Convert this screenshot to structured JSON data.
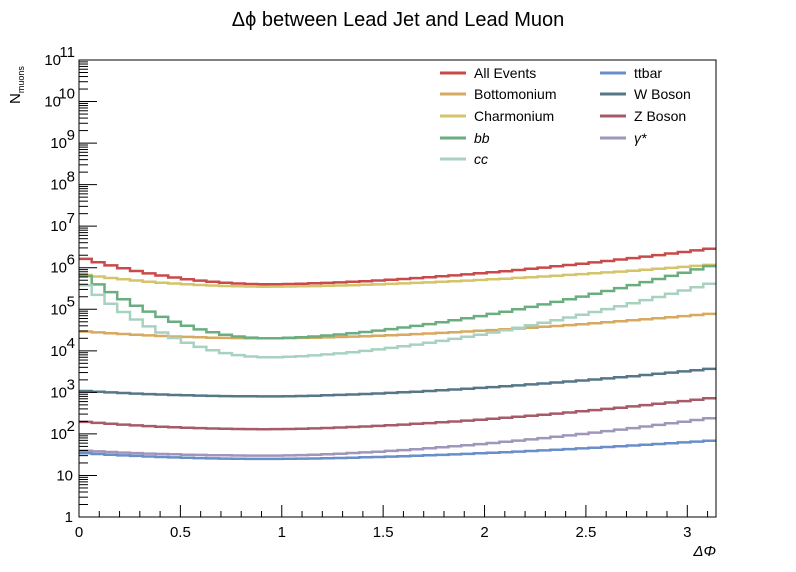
{
  "chart_data": {
    "type": "line",
    "title": "Δϕ between Lead Jet and Lead Muon",
    "xlabel": "ΔΦ",
    "ylabel": "N",
    "ylabel_sub": "muons",
    "xlim": [
      0,
      3.1416
    ],
    "ylim": [
      1,
      100000000000
    ],
    "yscale": "log",
    "grid": false,
    "legend_position": "top-right",
    "x_ticks": [
      {
        "v": 0,
        "label": "0"
      },
      {
        "v": 0.5,
        "label": "0.5"
      },
      {
        "v": 1,
        "label": "1"
      },
      {
        "v": 1.5,
        "label": "1.5"
      },
      {
        "v": 2,
        "label": "2"
      },
      {
        "v": 2.5,
        "label": "2.5"
      },
      {
        "v": 3,
        "label": "3"
      }
    ],
    "y_ticks": [
      {
        "e": 0,
        "base": "1",
        "exp": ""
      },
      {
        "e": 1,
        "base": "10",
        "exp": ""
      },
      {
        "e": 2,
        "base": "10",
        "exp": "2"
      },
      {
        "e": 3,
        "base": "10",
        "exp": "3"
      },
      {
        "e": 4,
        "base": "10",
        "exp": "4"
      },
      {
        "e": 5,
        "base": "10",
        "exp": "5"
      },
      {
        "e": 6,
        "base": "10",
        "exp": "6"
      },
      {
        "e": 7,
        "base": "10",
        "exp": "7"
      },
      {
        "e": 8,
        "base": "10",
        "exp": "8"
      },
      {
        "e": 9,
        "base": "10",
        "exp": "9"
      },
      {
        "e": 10,
        "base": "10",
        "exp": "10"
      },
      {
        "e": 11,
        "base": "10",
        "exp": "11"
      }
    ],
    "series": [
      {
        "name": "All Events",
        "color": "#c94a4a",
        "curve": {
          "type": "u",
          "left": 1800000,
          "min": 400000,
          "right": 3000000
        }
      },
      {
        "name": "Bottomonium",
        "color": "#d6aa60",
        "curve": {
          "type": "u",
          "left": 30000,
          "min": 20000,
          "right": 80000
        }
      },
      {
        "name": "Charmonium",
        "color": "#d4c46a",
        "curve": {
          "type": "u",
          "left": 700000,
          "min": 350000,
          "right": 1200000
        }
      },
      {
        "name": "bb",
        "color": "#6aae80",
        "curve": {
          "type": "u",
          "left": 800000,
          "min": 20000,
          "right": 1200000
        }
      },
      {
        "name": "cc",
        "color": "#a8d2c0",
        "curve": {
          "type": "u",
          "left": 500000,
          "min": 7000,
          "right": 450000
        }
      },
      {
        "name": "ttbar",
        "color": "#6a8ec8",
        "curve": {
          "type": "u",
          "left": 35,
          "min": 25,
          "right": 70
        }
      },
      {
        "name": "W Boson",
        "color": "#557788",
        "curve": {
          "type": "u",
          "left": 1100,
          "min": 800,
          "right": 3800
        }
      },
      {
        "name": "Z Boson",
        "color": "#a65b68",
        "curve": {
          "type": "u",
          "left": 200,
          "min": 130,
          "right": 750
        }
      },
      {
        "name": "γ*",
        "color": "#a096bb",
        "curve": {
          "type": "u",
          "left": 40,
          "min": 30,
          "right": 250
        }
      }
    ]
  }
}
